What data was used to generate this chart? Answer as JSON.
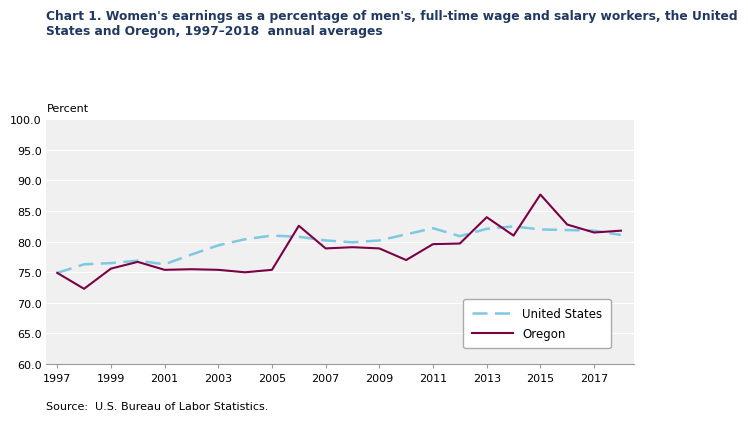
{
  "title_line1": "Chart 1. Women's earnings as a percentage of men's, full-time wage and salary workers, the United",
  "title_line2": "States and Oregon, 1997–2018  annual averages",
  "ylabel": "Percent",
  "source": "Source:  U.S. Bureau of Labor Statistics.",
  "years": [
    1997,
    1998,
    1999,
    2000,
    2001,
    2002,
    2003,
    2004,
    2005,
    2006,
    2007,
    2008,
    2009,
    2010,
    2011,
    2012,
    2013,
    2014,
    2015,
    2016,
    2017,
    2018
  ],
  "us_data": [
    74.9,
    76.3,
    76.5,
    76.9,
    76.3,
    77.9,
    79.4,
    80.4,
    81.0,
    80.8,
    80.2,
    79.9,
    80.2,
    81.2,
    82.2,
    80.9,
    82.1,
    82.5,
    82.0,
    81.9,
    81.8,
    81.1
  ],
  "or_data": [
    74.9,
    72.3,
    75.6,
    76.7,
    75.4,
    75.5,
    75.4,
    75.0,
    75.4,
    82.6,
    78.9,
    79.1,
    78.9,
    77.0,
    79.6,
    79.7,
    84.0,
    81.0,
    87.7,
    82.8,
    81.5,
    81.8
  ],
  "us_color": "#7ec8e3",
  "or_color": "#7b0044",
  "ylim": [
    60.0,
    100.0
  ],
  "yticks": [
    60.0,
    65.0,
    70.0,
    75.0,
    80.0,
    85.0,
    90.0,
    95.0,
    100.0
  ],
  "xticks": [
    1997,
    1999,
    2001,
    2003,
    2005,
    2007,
    2009,
    2011,
    2013,
    2015,
    2017
  ],
  "plot_bg": "#f0f0f0",
  "grid_color": "#ffffff",
  "title_color": "#1f3864",
  "title_fontsize": 8.8,
  "tick_fontsize": 8,
  "legend_fontsize": 8.5
}
